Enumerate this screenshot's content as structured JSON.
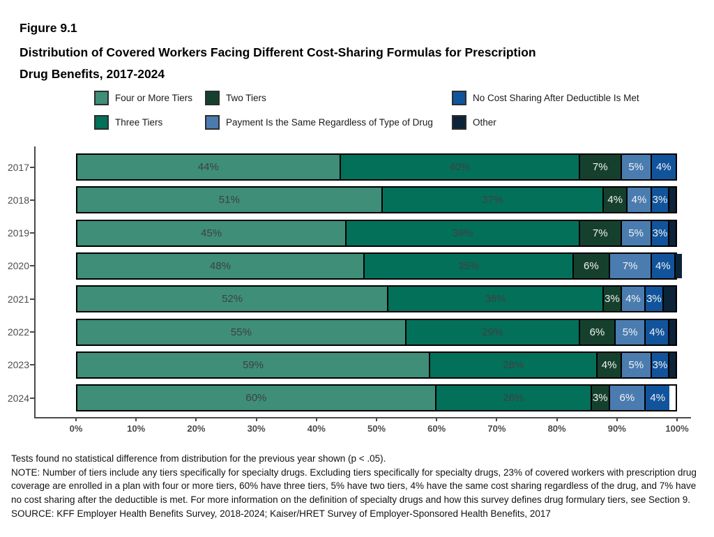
{
  "figure": {
    "label": "Figure 9.1",
    "title_lines": [
      "Distribution of Covered Workers Facing Different Cost-Sharing Formulas for Prescription",
      "Drug Benefits, 2017-2024"
    ]
  },
  "colors": {
    "four_or_more_tiers": "#3E8E78",
    "three_tiers": "#03705A",
    "two_tiers": "#16402E",
    "payment_same": "#4A7CB0",
    "no_cost_sharing": "#11549B",
    "other": "#0C2338",
    "axis": "#4a4a4a",
    "dark_label": "#404040",
    "light_label": "#F2F2F2"
  },
  "legend": {
    "items": [
      {
        "label": "Four or More Tiers",
        "color": "#3E8E78",
        "row": 0,
        "col": 0
      },
      {
        "label": "Two Tiers",
        "color": "#16402E",
        "row": 0,
        "col": 1
      },
      {
        "label": "No Cost Sharing After Deductible Is Met",
        "color": "#11549B",
        "row": 0,
        "col": 2
      },
      {
        "label": "Three Tiers",
        "color": "#03705A",
        "row": 1,
        "col": 0
      },
      {
        "label": "Payment Is the Same Regardless of Type of Drug",
        "color": "#4A7CB0",
        "row": 1,
        "col": 1
      },
      {
        "label": "Other",
        "color": "#0C2338",
        "row": 1,
        "col": 2
      }
    ]
  },
  "chart_data": {
    "type": "bar",
    "orientation": "horizontal-stacked",
    "categories": [
      "2017",
      "2018",
      "2019",
      "2020",
      "2021",
      "2022",
      "2023",
      "2024"
    ],
    "series": [
      {
        "name": "Four or More Tiers",
        "color": "#3E8E78",
        "label_color": "#404040",
        "labels_shown": true,
        "values": [
          44,
          51,
          45,
          48,
          52,
          55,
          59,
          60
        ]
      },
      {
        "name": "Three Tiers",
        "color": "#03705A",
        "label_color": "#404040",
        "labels_shown": true,
        "values": [
          40,
          37,
          39,
          35,
          36,
          29,
          28,
          26
        ]
      },
      {
        "name": "Two Tiers",
        "color": "#16402E",
        "label_color": "#F2F2F2",
        "labels_shown": true,
        "values": [
          7,
          4,
          7,
          6,
          3,
          6,
          4,
          3
        ]
      },
      {
        "name": "Payment Is the Same Regardless of Type of Drug",
        "color": "#4A7CB0",
        "label_color": "#F2F2F2",
        "labels_shown": true,
        "values": [
          5,
          4,
          5,
          7,
          4,
          5,
          5,
          6
        ]
      },
      {
        "name": "No Cost Sharing After Deductible Is Met",
        "color": "#11549B",
        "label_color": "#F2F2F2",
        "labels_shown": true,
        "values": [
          4,
          3,
          3,
          4,
          3,
          4,
          3,
          4
        ]
      },
      {
        "name": "Other",
        "color": "#0C2338",
        "label_color": "#F2F2F2",
        "labels_shown": false,
        "values": [
          0,
          1,
          1,
          1,
          2,
          1,
          1,
          0
        ]
      }
    ],
    "value_suffix": "%",
    "xlim": [
      0,
      100
    ],
    "x_ticks": [
      "0%",
      "10%",
      "20%",
      "30%",
      "40%",
      "50%",
      "60%",
      "70%",
      "80%",
      "90%",
      "100%"
    ],
    "grid": "off",
    "legend_position": "top"
  },
  "footnotes": {
    "tests": "Tests found no statistical difference from distribution for the previous year shown (p < .05).",
    "note": "NOTE: Number of tiers include any tiers specifically for specialty drugs. Excluding tiers specifically for specialty drugs, 23% of covered workers with prescription drug coverage are enrolled in a plan with four or more tiers, 60% have three tiers, 5% have two tiers, 4% have the same cost sharing regardless of the drug, and 7% have no cost sharing after the deductible is met. For more information on the definition of specialty drugs and how this survey defines drug formulary tiers, see Section 9.",
    "source": "SOURCE: KFF Employer Health Benefits Survey, 2018-2024; Kaiser/HRET Survey of Employer-Sponsored Health Benefits, 2017"
  }
}
